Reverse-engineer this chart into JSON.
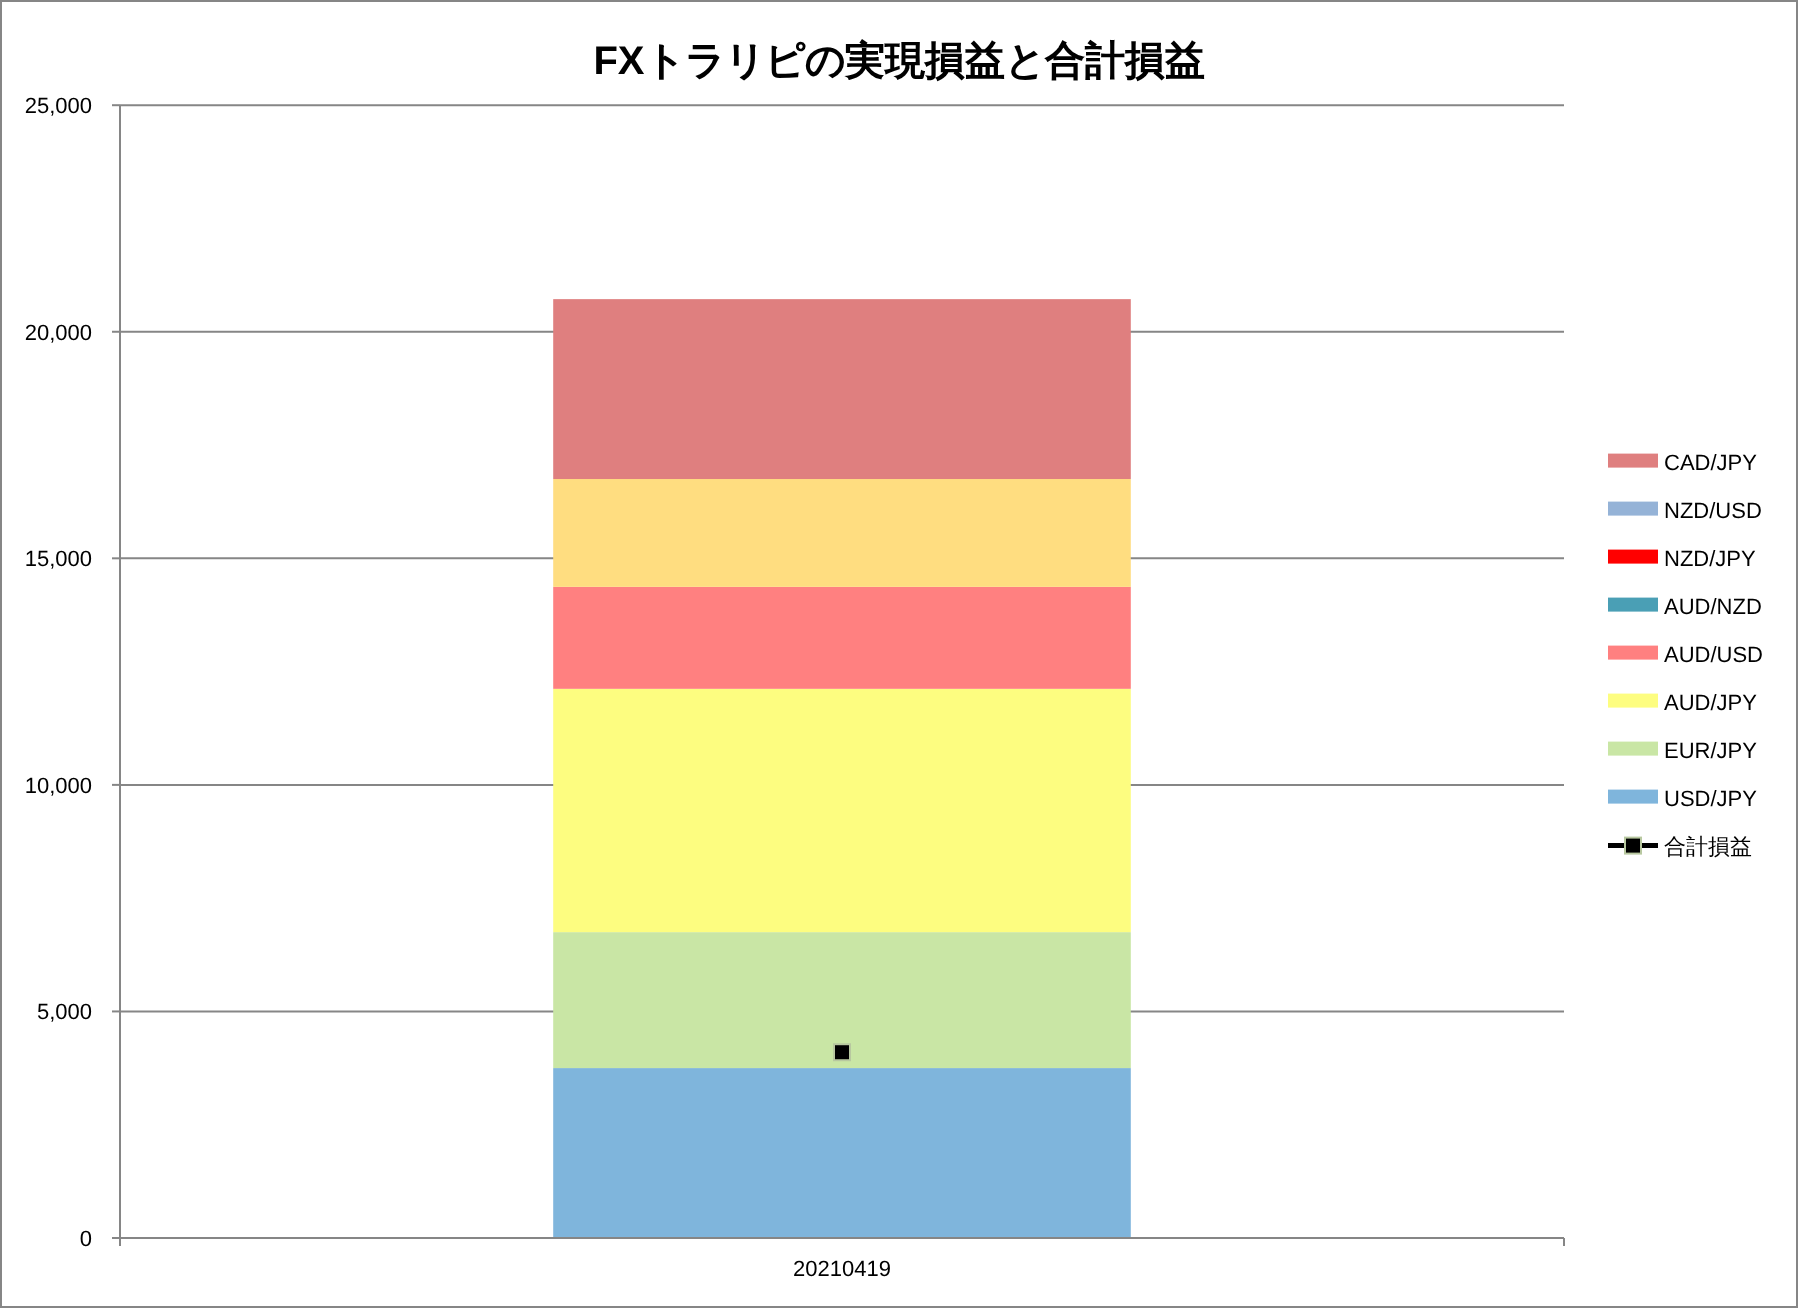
{
  "chart_data": {
    "type": "bar",
    "stacked": true,
    "title": "FXトラリピの実現損益と合計損益",
    "categories": [
      "20210419"
    ],
    "series": [
      {
        "name": "USD/JPY",
        "color": "#7fb5dc",
        "values": [
          3750
        ]
      },
      {
        "name": "EUR/JPY",
        "color": "#c9e6a5",
        "values": [
          3000
        ]
      },
      {
        "name": "AUD/JPY",
        "color": "#fdfd80",
        "values": [
          5370
        ]
      },
      {
        "name": "AUD/USD",
        "color": "#ff8080",
        "values": [
          2250
        ]
      },
      {
        "name": "AUD/NZD",
        "color": "#4a9fb5",
        "values": [
          null
        ]
      },
      {
        "name": "NZD/JPY",
        "color": "#ff0000",
        "values": [
          null
        ]
      },
      {
        "name": "NZD/USD",
        "color": "#95b3d7",
        "values": [
          null
        ]
      },
      {
        "color": "#ffdd80",
        "values": [
          2380
        ]
      },
      {
        "name": "CAD/JPY",
        "color": "#df7f7f",
        "values": [
          3970
        ]
      },
      {
        "name": "合計損益",
        "type": "line",
        "color": "#000000",
        "marker": "square",
        "values": [
          4100
        ]
      }
    ],
    "ylim": [
      0,
      25000
    ],
    "yticks": [
      0,
      {
        "value": 5000,
        "label": "5,000"
      },
      {
        "value": 10000,
        "label": "10,000"
      },
      {
        "value": 15000,
        "label": "15,000"
      },
      {
        "value": 20000,
        "label": "20,000"
      },
      {
        "value": 25000,
        "label": "25,000"
      }
    ],
    "grid": "y",
    "legend": "right"
  }
}
